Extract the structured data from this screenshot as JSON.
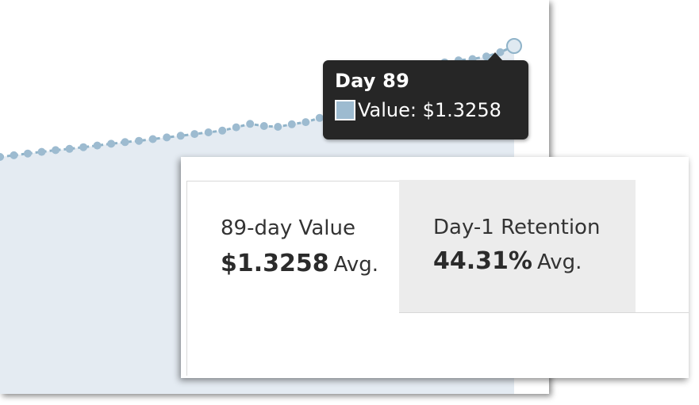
{
  "chart_data": {
    "type": "area",
    "title": "",
    "xlabel": "",
    "ylabel": "",
    "series": [
      {
        "values": [
          1.064,
          1.068,
          1.072,
          1.076,
          1.08,
          1.083,
          1.087,
          1.091,
          1.095,
          1.099,
          1.102,
          1.106,
          1.11,
          1.114,
          1.118,
          1.122,
          1.126,
          1.134,
          1.142,
          1.137,
          1.135,
          1.141,
          1.146,
          1.156,
          1.168,
          1.182,
          1.203,
          1.217,
          1.228,
          1.242,
          1.268,
          1.279,
          1.287,
          1.292,
          1.295,
          1.301,
          1.311,
          1.3258
        ]
      }
    ],
    "last_point": {
      "x": 89,
      "y": 1.3258
    },
    "area_color": "#e4ebf2",
    "line_color": "#8fb3c9",
    "marker_color": "#9dbbd0"
  },
  "tooltip": {
    "title": "Day 89",
    "value_text": "Value: $1.3258",
    "swatch_color": "#9dbbd0"
  },
  "stats": {
    "value_tab": {
      "label": "89-day Value",
      "number": "$1.3258",
      "suffix": "Avg."
    },
    "retention_tab": {
      "label": "Day-1 Retention",
      "number": "44.31%",
      "suffix": "Avg."
    }
  }
}
